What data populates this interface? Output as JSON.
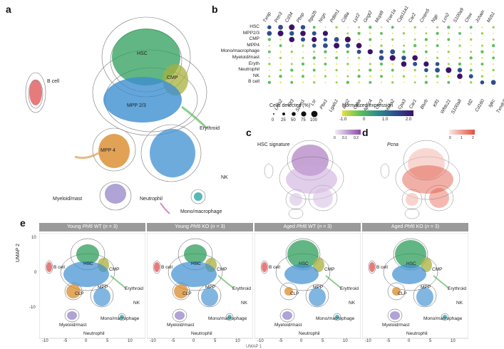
{
  "panels": {
    "a": "a",
    "b": "b",
    "c": "c",
    "d": "d",
    "e": "e"
  },
  "panel_a": {
    "labels": {
      "hsc": "HSC",
      "cmp": "CMP",
      "mpp23": "MPP 2/3",
      "mpp4": "MPP 4",
      "bcell": "B cell",
      "erythroid": "Erythroid",
      "nk": "NK",
      "myeloid": "Myeloid/mast",
      "neutrophil": "Neutrophil",
      "mono": "Mono/macrophage"
    },
    "colors": {
      "hsc": "#2e9e5b",
      "cmp": "#a8b03c",
      "mpp23": "#3d8fd1",
      "mpp4": "#d98b2b",
      "bcell": "#e05a5a",
      "erythroid": "#5cb85c",
      "nk": "#e06fa0",
      "myeloid": "#8e7cc3",
      "neutrophil": "#c75a9a",
      "mono": "#2aa8a8"
    }
  },
  "panel_b": {
    "top_genes": [
      "Txnip",
      "Prtn3",
      "Cd34",
      "Pbsp",
      "Itga2b",
      "Nrgn",
      "Pdlim1",
      "Cd8a",
      "Lyz2",
      "Gngt2",
      "Mcpt8",
      "Fcer1a",
      "Cyp11a1",
      "Car2",
      "Cmtm5",
      "Ngp",
      "Lcn2",
      "S100a9",
      "Ctsw",
      "Jchain",
      "Mzb1"
    ],
    "bottom_genes": [
      "Lmo2",
      "Flt3",
      "Stmn1",
      "Lsr",
      "Pbx1",
      "Lgals1",
      "Erg2",
      "Cyba",
      "Apoc4",
      "Clcr3",
      "Ms4a2",
      "Cpa3",
      "Car1",
      "Blvrb",
      "Klf1",
      "Wfdc21",
      "S100a8",
      "Id2",
      "Cd160",
      "Igkc",
      "Txndc5"
    ],
    "rows": [
      "HSC",
      "MPP2/3",
      "CMP",
      "MPP4",
      "Mono/macrophage",
      "Myeloid/mast",
      "Eryth",
      "Neutrophil",
      "NK",
      "B cell"
    ],
    "legend_size": {
      "title": "Cells detected (%)",
      "ticks": [
        "0",
        "25",
        "50",
        "75",
        "100"
      ]
    },
    "legend_color": {
      "title": "Normalized expression",
      "ticks": [
        "-1.0",
        "0",
        "1.0",
        "2.0"
      ],
      "low": "#e8e23a",
      "mid": "#2a8c8c",
      "high": "#3a1269"
    }
  },
  "panel_c": {
    "title": "HSC signature",
    "scale_ticks": [
      "0",
      "0.1",
      "0.2"
    ],
    "color": "#8c4aa8"
  },
  "panel_d": {
    "title": "Pcna",
    "scale_ticks": [
      "0",
      "1",
      "2"
    ],
    "color": "#e0503c"
  },
  "panel_e": {
    "strips": [
      {
        "pre": "Young ",
        "gene": "Phf6",
        "post": " WT (",
        "n": "n",
        "eq": " = 3)"
      },
      {
        "pre": "Young ",
        "gene": "Phf6",
        "post": " KO (",
        "n": "n",
        "eq": " = 3)"
      },
      {
        "pre": "Aged ",
        "gene": "Phf6",
        "post": " WT (",
        "n": "n",
        "eq": " = 3)"
      },
      {
        "pre": "Aged ",
        "gene": "Phf6",
        "post": " KO (",
        "n": "n",
        "eq": " = 3)"
      }
    ],
    "labels": {
      "bcell": "B cell",
      "hsc": "HSC",
      "cmp": "CMP",
      "mpp": "MPP",
      "clp": "CLP",
      "erythroid": "Erythroid",
      "nk": "NK",
      "mono": "Mono/macrophage",
      "myeloid": "Myeloid/mast",
      "neutrophil": "Neutrophil"
    },
    "y_axis_label": "UMAP 2",
    "x_axis_label": "UMAP 1",
    "y_ticks": [
      "10",
      "0",
      "-10"
    ],
    "x_ticks": [
      "-10",
      "-5",
      "0",
      "5",
      "10"
    ]
  }
}
